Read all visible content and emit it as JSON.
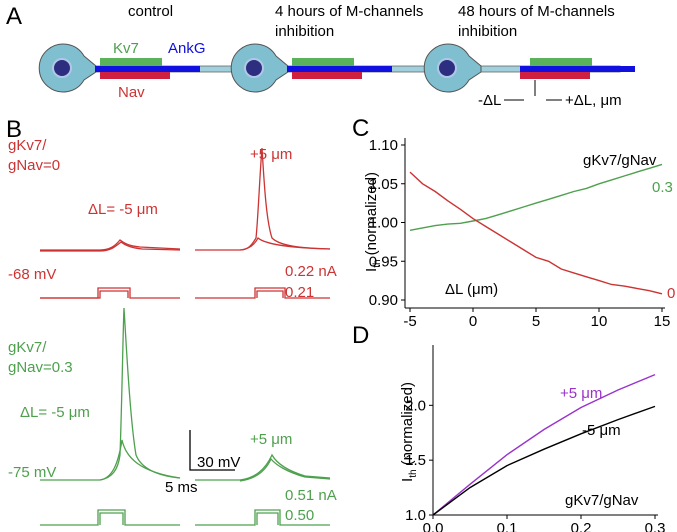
{
  "panels": {
    "A": {
      "label": "A",
      "conditions": [
        {
          "title_lines": [
            "control"
          ]
        },
        {
          "title_lines": [
            "4 hours of M-channels",
            "inhibition"
          ]
        },
        {
          "title_lines": [
            "48 hours of M-channels",
            "inhibition"
          ]
        }
      ],
      "kv7": "Kv7",
      "ankg": "AnkG",
      "nav": "Nav",
      "shift_left": "-ΔL",
      "shift_right": "+ΔL, μm"
    },
    "B": {
      "label": "B",
      "red": {
        "ratio_lines": [
          "gKv7/",
          "gNav=0"
        ],
        "left_label": "ΔL= -5 μm",
        "right_label": "+5 μm",
        "rest": "-68 mV",
        "currents": [
          "0.22 nA",
          "0.21"
        ]
      },
      "green": {
        "ratio_lines": [
          "gKv7/",
          "gNav=0.3"
        ],
        "left_label": "ΔL= -5 μm",
        "right_label": "+5 μm",
        "rest": "-75 mV",
        "currents": [
          "0.51 nA",
          "0.50"
        ]
      },
      "scale_v": "30 mV",
      "scale_t": "5 ms"
    }
  },
  "chart_data": [
    {
      "type": "line",
      "panel_label": "C",
      "xlabel": "ΔL (μm)",
      "ylabel": {
        "symbol": "I",
        "subscript": "th",
        "text": "(normalized)"
      },
      "legend_title": "gKv7/gNav",
      "x": [
        -5,
        -4,
        -3,
        -2,
        -1,
        0,
        1,
        2,
        3,
        4,
        5,
        6,
        7,
        8,
        9,
        10,
        11,
        12,
        13,
        14,
        15
      ],
      "series": [
        {
          "name": "0.3",
          "color": "#4ea04e",
          "values": [
            0.99,
            0.993,
            0.996,
            0.998,
            0.999,
            1.002,
            1.005,
            1.01,
            1.015,
            1.02,
            1.025,
            1.03,
            1.035,
            1.04,
            1.044,
            1.05,
            1.055,
            1.06,
            1.065,
            1.07,
            1.075
          ]
        },
        {
          "name": "0",
          "color": "#cc3333",
          "values": [
            1.065,
            1.05,
            1.04,
            1.028,
            1.017,
            1.005,
            0.995,
            0.985,
            0.975,
            0.965,
            0.955,
            0.95,
            0.94,
            0.935,
            0.93,
            0.925,
            0.92,
            0.918,
            0.915,
            0.912,
            0.908
          ]
        }
      ],
      "xlim": [
        -5,
        15
      ],
      "ylim": [
        0.9,
        1.1
      ],
      "xticks": [
        -5,
        0,
        5,
        10,
        15
      ],
      "yticks": [
        {
          "value": 0.9,
          "label": "0.90"
        },
        0.95,
        {
          "value": 1.0,
          "label": "1.00"
        },
        1.05,
        {
          "value": 1.1,
          "label": "1.10"
        }
      ]
    },
    {
      "type": "line",
      "panel_label": "D",
      "xlabel": "gKv7/gNav",
      "ylabel": {
        "symbol": "I",
        "subscript": "th",
        "text": "(normalized)"
      },
      "x": [
        0,
        0.05,
        0.1,
        0.15,
        0.2,
        0.25,
        0.3
      ],
      "series": [
        {
          "name": "+5 μm",
          "color": "#9933cc",
          "values": [
            1.0,
            1.28,
            1.55,
            1.78,
            1.98,
            2.14,
            2.28
          ]
        },
        {
          "name": "-5 μm",
          "color": "#000000",
          "values": [
            1.0,
            1.25,
            1.45,
            1.6,
            1.74,
            1.87,
            1.99
          ]
        }
      ],
      "xlim": [
        0,
        0.3
      ],
      "ylim": [
        1.0,
        2.55
      ],
      "xticks": [
        {
          "value": 0,
          "label": "0.0"
        },
        0.1,
        0.2,
        0.3
      ],
      "yticks": [
        {
          "value": 1.0,
          "label": "1.0"
        },
        1.5,
        {
          "value": 2.0,
          "label": "2.0"
        }
      ]
    }
  ]
}
